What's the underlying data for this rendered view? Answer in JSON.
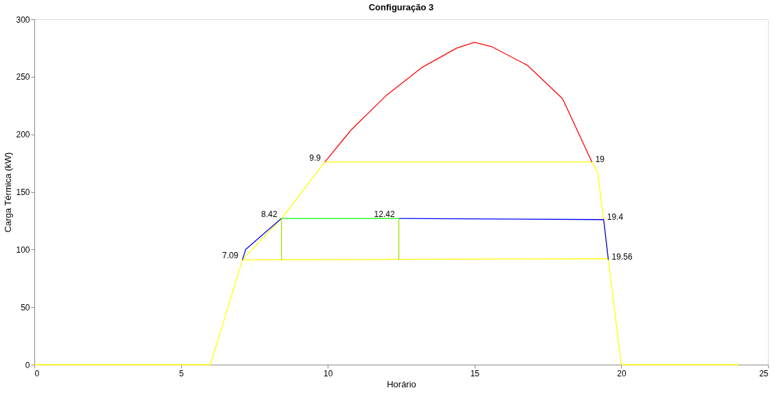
{
  "chart_data": {
    "type": "line",
    "title": "Configuração 3",
    "xlabel": "Horário",
    "ylabel": "Carga Térmica (kW)",
    "xlim": [
      0,
      25
    ],
    "ylim": [
      0,
      300
    ],
    "xticks": [
      0,
      5,
      10,
      15,
      20,
      25
    ],
    "yticks": [
      0,
      50,
      100,
      150,
      200,
      250,
      300
    ],
    "grid": false,
    "legend": false,
    "marker": "none",
    "line_style": "solid",
    "series": [
      {
        "color": "#ffff00",
        "x": [
          0,
          6,
          7.09,
          8.42,
          9.9,
          19,
          19.2,
          19.56,
          20,
          24
        ],
        "values": [
          0,
          0,
          91,
          127,
          176,
          176,
          167,
          91,
          0,
          0
        ]
      },
      {
        "color": "#ffff00",
        "x": [
          7.09,
          19.56
        ],
        "values": [
          91,
          92
        ]
      },
      {
        "color": "#ff0000",
        "x": [
          9.9,
          10.8,
          12,
          13.2,
          14.4,
          15,
          15.6,
          16.8,
          18,
          19
        ],
        "values": [
          176,
          204,
          234,
          258,
          275,
          280,
          276,
          260,
          231,
          176
        ]
      },
      {
        "color": "#0000ff",
        "x": [
          7.09,
          7.2,
          8.42
        ],
        "values": [
          91,
          100,
          127
        ]
      },
      {
        "color": "#0000ff",
        "x": [
          12.42,
          19.4,
          19.56
        ],
        "values": [
          127,
          126,
          91
        ]
      },
      {
        "color": "#00ff00",
        "x": [
          8.42,
          12.42
        ],
        "values": [
          127,
          127
        ]
      },
      {
        "color": "#99e600",
        "x": [
          8.42,
          8.42,
          null,
          12.42,
          12.42
        ],
        "values": [
          91,
          127,
          null,
          127,
          91
        ]
      }
    ],
    "annotations": [
      {
        "text": "9.9",
        "x": 9.9,
        "y": 176
      },
      {
        "text": "19",
        "x": 19,
        "y": 176
      },
      {
        "text": "8.42",
        "x": 8.42,
        "y": 127
      },
      {
        "text": "12.42",
        "x": 12.42,
        "y": 127
      },
      {
        "text": "19.4",
        "x": 19.4,
        "y": 126
      },
      {
        "text": "7.09",
        "x": 7.09,
        "y": 91
      },
      {
        "text": "19.56",
        "x": 19.56,
        "y": 91
      }
    ]
  }
}
